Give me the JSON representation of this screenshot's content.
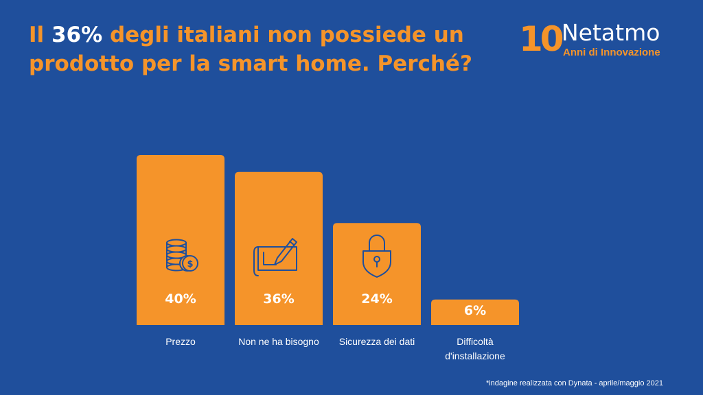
{
  "title": {
    "prefix": "Il ",
    "highlight": "36%",
    "rest": " degli italiani non possiede un prodotto per la smart home. Perché?"
  },
  "logo": {
    "number": "10",
    "brand": "Netatmo",
    "tagline": "Anni di Innovazione"
  },
  "chart_data": {
    "type": "bar",
    "categories": [
      "Prezzo",
      "Non ne ha bisogno",
      "Sicurezza dei dati",
      "Difficoltà d'installazione"
    ],
    "values": [
      40,
      36,
      24,
      6
    ],
    "data_labels": [
      "40%",
      "36%",
      "24%",
      "6%"
    ],
    "icons": [
      "coins-icon",
      "blueprint-pencil-icon",
      "padlock-icon",
      ""
    ],
    "bar_color": "#f5942a",
    "background_color": "#1f4f9c",
    "ylim": [
      0,
      40
    ],
    "grid": false
  },
  "footnote": "*indagine realizzata con Dynata - aprile/maggio 2021"
}
